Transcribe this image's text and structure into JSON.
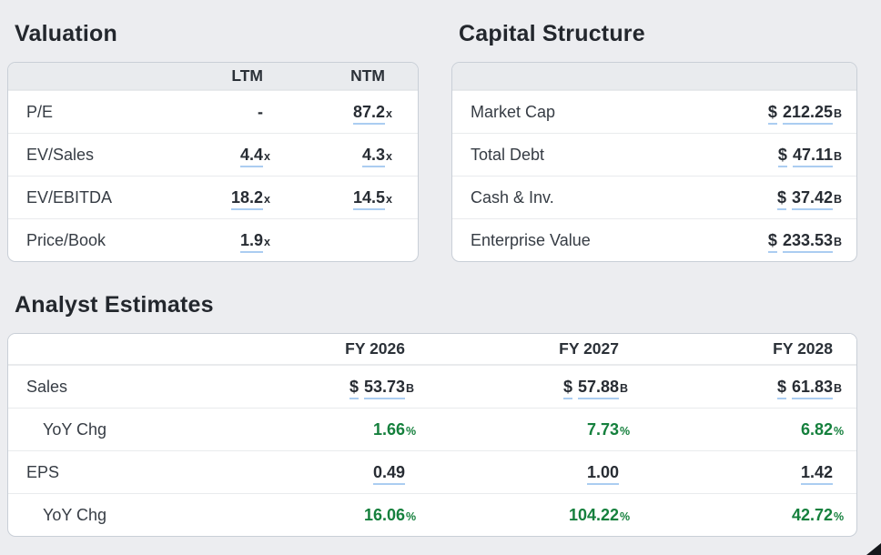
{
  "colors": {
    "background": "#ecedf0",
    "underline_accent": "#abcdf1",
    "positive_green": "#15803d",
    "header_gray": "#e9ebee",
    "card_border": "#c9cfd7"
  },
  "valuation": {
    "title": "Valuation",
    "columns": [
      "LTM",
      "NTM"
    ],
    "rows": [
      {
        "label": "P/E",
        "ltm": {
          "value": "-",
          "suffix": ""
        },
        "ntm": {
          "value": "87.2",
          "suffix": "x"
        }
      },
      {
        "label": "EV/Sales",
        "ltm": {
          "value": "4.4",
          "suffix": "x"
        },
        "ntm": {
          "value": "4.3",
          "suffix": "x"
        }
      },
      {
        "label": "EV/EBITDA",
        "ltm": {
          "value": "18.2",
          "suffix": "x"
        },
        "ntm": {
          "value": "14.5",
          "suffix": "x"
        }
      },
      {
        "label": "Price/Book",
        "ltm": {
          "value": "1.9",
          "suffix": "x"
        },
        "ntm": {
          "value": "",
          "suffix": ""
        }
      }
    ]
  },
  "capital_structure": {
    "title": "Capital Structure",
    "rows": [
      {
        "label": "Market Cap",
        "currency": "$",
        "value": "212.25",
        "suffix": "B"
      },
      {
        "label": "Total Debt",
        "currency": "$",
        "value": "47.11",
        "suffix": "B"
      },
      {
        "label": "Cash & Inv.",
        "currency": "$",
        "value": "37.42",
        "suffix": "B"
      },
      {
        "label": "Enterprise Value",
        "currency": "$",
        "value": "233.53",
        "suffix": "B"
      }
    ]
  },
  "analyst_estimates": {
    "title": "Analyst Estimates",
    "columns": [
      "FY 2026",
      "FY 2027",
      "FY 2028"
    ],
    "rows": [
      {
        "label": "Sales",
        "currency": "$",
        "suffix": "B",
        "values": [
          "53.73",
          "57.88",
          "61.83"
        ]
      },
      {
        "label": "YoY Chg",
        "suffix": "%",
        "values": [
          "1.66",
          "7.73",
          "6.82"
        ]
      },
      {
        "label": "EPS",
        "suffix": "",
        "values": [
          "0.49",
          "1.00",
          "1.42"
        ]
      },
      {
        "label": "YoY Chg",
        "suffix": "%",
        "values": [
          "16.06",
          "104.22",
          "42.72"
        ]
      }
    ]
  }
}
